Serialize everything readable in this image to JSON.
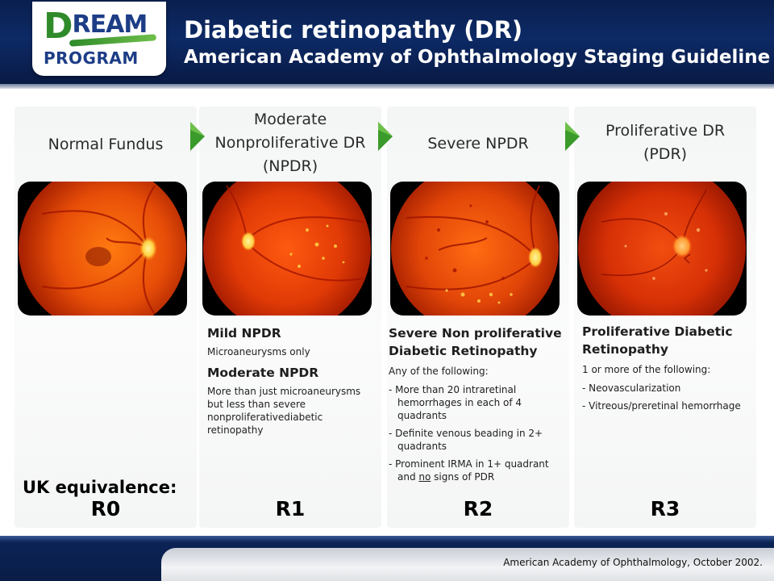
{
  "logo": {
    "line1_d": "D",
    "line1_rest": "REAM",
    "line2": "PROGRAM"
  },
  "header": {
    "title": "Diabetic retinopathy (DR)",
    "subtitle": "American Academy of Ophthalmology Staging Guideline"
  },
  "stages": [
    {
      "title": [
        "Normal Fundus"
      ],
      "grade": "R0"
    },
    {
      "title": [
        "Moderate",
        "Nonproliferative DR",
        "(NPDR)"
      ],
      "grade": "R1",
      "sections": [
        {
          "heading": "Mild NPDR",
          "text": "Microaneurysms only"
        },
        {
          "heading": "Moderate NPDR",
          "text": "More than just microaneurysms but less than severe nonproliferativediabetic retinopathy"
        }
      ]
    },
    {
      "title": [
        "Severe NPDR"
      ],
      "grade": "R2",
      "heading": [
        "Severe Non proliferative",
        "Diabetic Retinopathy"
      ],
      "intro": "Any of the following:",
      "items": [
        "- More than 20 intraretinal hemorrhages in each of 4 quadrants",
        "- Definite venous beading in 2+ quadrants",
        "- Prominent  IRMA in 1+ quadrant"
      ],
      "item3_tail_a": "and ",
      "item3_tail_u": "no",
      "item3_tail_b": " signs of PDR"
    },
    {
      "title": [
        "Proliferative DR",
        "(PDR)"
      ],
      "grade": "R3",
      "heading": [
        "Proliferative Diabetic",
        "Retinopathy"
      ],
      "intro": "1 or more of the following:",
      "items": [
        "- Neovascularization",
        "- Vitreous/preretinal hemorrhage"
      ]
    }
  ],
  "uk_label": "UK equivalence:",
  "footer": {
    "citation": "American Academy of Ophthalmology, October 2002."
  },
  "colors": {
    "header_navy": "#0d2a66",
    "arrow_green": "#3a9a2a",
    "logo_green": "#2f8a2a",
    "logo_blue": "#1d3d86"
  }
}
